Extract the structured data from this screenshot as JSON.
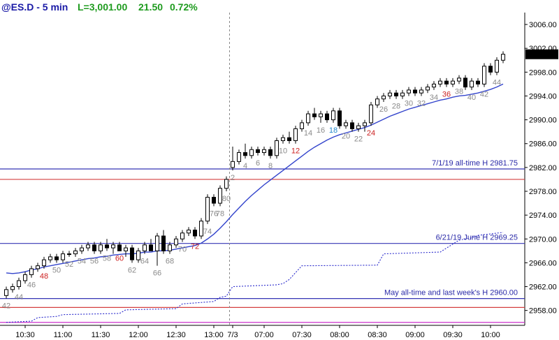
{
  "header": {
    "symbol": "@ES.D - 5 min",
    "last": "L=3,001.00",
    "change": "21.50",
    "pct": "0.72%",
    "colors": {
      "symbol": "#1a1aa6",
      "positive": "#1e9b1e"
    }
  },
  "chart_data": {
    "type": "candlestick",
    "title": "@ES.D - 5 min",
    "xlabel": "",
    "ylabel": "",
    "ylim": [
      2955.5,
      3008
    ],
    "y_ticks": [
      2958,
      2962,
      2966,
      2970,
      2974,
      2978,
      2982,
      2986,
      2990,
      2994,
      2998,
      3002,
      3006
    ],
    "y_tick_labels": [
      "2958.00",
      "2962.00",
      "2966.00",
      "2970.00",
      "2974.00",
      "2978.00",
      "2982.00",
      "2986.00",
      "2990.00",
      "2994.00",
      "2998.00",
      "3002.00",
      "3006.00"
    ],
    "x_ticks": [
      {
        "bar": 3,
        "label": "10:30"
      },
      {
        "bar": 9,
        "label": "11:00"
      },
      {
        "bar": 15,
        "label": "11:30"
      },
      {
        "bar": 21,
        "label": "12:00"
      },
      {
        "bar": 27,
        "label": "12:30"
      },
      {
        "bar": 33,
        "label": "13:00"
      },
      {
        "bar": 36,
        "label": "7/3"
      },
      {
        "bar": 41,
        "label": "07:00"
      },
      {
        "bar": 47,
        "label": "07:30"
      },
      {
        "bar": 53,
        "label": "08:00"
      },
      {
        "bar": 59,
        "label": "08:30"
      },
      {
        "bar": 65,
        "label": "09:00"
      },
      {
        "bar": 71,
        "label": "09:30"
      },
      {
        "bar": 77,
        "label": "10:00"
      }
    ],
    "session_break_bar": 35.5,
    "last_price_label": "3001.00",
    "bars": [
      {
        "o": 2960.5,
        "h": 2962.0,
        "l": 2960.0,
        "c": 2961.5
      },
      {
        "o": 2961.5,
        "h": 2962.5,
        "l": 2961.0,
        "c": 2962.0
      },
      {
        "o": 2962.0,
        "h": 2963.5,
        "l": 2961.5,
        "c": 2963.0
      },
      {
        "o": 2963.0,
        "h": 2964.5,
        "l": 2962.5,
        "c": 2964.0
      },
      {
        "o": 2964.0,
        "h": 2965.5,
        "l": 2963.5,
        "c": 2965.0
      },
      {
        "o": 2965.0,
        "h": 2966.0,
        "l": 2964.5,
        "c": 2965.5
      },
      {
        "o": 2965.5,
        "h": 2967.0,
        "l": 2965.0,
        "c": 2966.5
      },
      {
        "o": 2966.5,
        "h": 2967.5,
        "l": 2966.0,
        "c": 2967.0
      },
      {
        "o": 2967.0,
        "h": 2967.5,
        "l": 2966.0,
        "c": 2966.5
      },
      {
        "o": 2966.5,
        "h": 2968.0,
        "l": 2966.0,
        "c": 2967.5
      },
      {
        "o": 2967.5,
        "h": 2968.0,
        "l": 2967.0,
        "c": 2967.5
      },
      {
        "o": 2967.5,
        "h": 2968.5,
        "l": 2967.0,
        "c": 2968.0
      },
      {
        "o": 2968.0,
        "h": 2969.0,
        "l": 2967.5,
        "c": 2968.5
      },
      {
        "o": 2968.5,
        "h": 2969.5,
        "l": 2968.0,
        "c": 2969.0
      },
      {
        "o": 2969.0,
        "h": 2969.5,
        "l": 2967.5,
        "c": 2968.0
      },
      {
        "o": 2968.0,
        "h": 2969.5,
        "l": 2967.5,
        "c": 2969.0
      },
      {
        "o": 2969.0,
        "h": 2970.0,
        "l": 2968.0,
        "c": 2968.5
      },
      {
        "o": 2968.5,
        "h": 2969.5,
        "l": 2967.5,
        "c": 2969.0
      },
      {
        "o": 2969.0,
        "h": 2969.5,
        "l": 2968.0,
        "c": 2968.0
      },
      {
        "o": 2968.0,
        "h": 2969.0,
        "l": 2967.0,
        "c": 2968.5
      },
      {
        "o": 2968.5,
        "h": 2969.0,
        "l": 2966.0,
        "c": 2966.5
      },
      {
        "o": 2966.5,
        "h": 2968.5,
        "l": 2966.0,
        "c": 2968.0
      },
      {
        "o": 2968.0,
        "h": 2969.5,
        "l": 2967.5,
        "c": 2969.0
      },
      {
        "o": 2969.0,
        "h": 2970.0,
        "l": 2968.0,
        "c": 2968.0
      },
      {
        "o": 2968.0,
        "h": 2971.0,
        "l": 2965.5,
        "c": 2970.5
      },
      {
        "o": 2970.5,
        "h": 2971.5,
        "l": 2967.5,
        "c": 2968.0
      },
      {
        "o": 2968.0,
        "h": 2969.5,
        "l": 2967.5,
        "c": 2969.0
      },
      {
        "o": 2969.0,
        "h": 2970.5,
        "l": 2968.5,
        "c": 2970.0
      },
      {
        "o": 2970.0,
        "h": 2971.5,
        "l": 2969.5,
        "c": 2971.0
      },
      {
        "o": 2971.0,
        "h": 2972.0,
        "l": 2970.5,
        "c": 2971.5
      },
      {
        "o": 2971.5,
        "h": 2972.0,
        "l": 2970.0,
        "c": 2970.5
      },
      {
        "o": 2970.5,
        "h": 2973.5,
        "l": 2970.0,
        "c": 2973.0
      },
      {
        "o": 2973.0,
        "h": 2977.5,
        "l": 2972.5,
        "c": 2977.0
      },
      {
        "o": 2977.0,
        "h": 2977.5,
        "l": 2975.5,
        "c": 2976.0
      },
      {
        "o": 2976.0,
        "h": 2979.0,
        "l": 2975.5,
        "c": 2978.5
      },
      {
        "o": 2978.5,
        "h": 2980.5,
        "l": 2978.0,
        "c": 2980.0
      },
      {
        "o": 2982.0,
        "h": 2985.5,
        "l": 2981.5,
        "c": 2983.0
      },
      {
        "o": 2983.0,
        "h": 2985.0,
        "l": 2982.5,
        "c": 2984.5
      },
      {
        "o": 2984.5,
        "h": 2986.0,
        "l": 2983.5,
        "c": 2984.0
      },
      {
        "o": 2984.0,
        "h": 2985.5,
        "l": 2983.5,
        "c": 2985.0
      },
      {
        "o": 2985.0,
        "h": 2985.5,
        "l": 2984.0,
        "c": 2984.5
      },
      {
        "o": 2984.5,
        "h": 2985.5,
        "l": 2984.0,
        "c": 2985.0
      },
      {
        "o": 2985.0,
        "h": 2985.5,
        "l": 2983.5,
        "c": 2984.0
      },
      {
        "o": 2984.0,
        "h": 2987.0,
        "l": 2983.5,
        "c": 2986.5
      },
      {
        "o": 2986.5,
        "h": 2987.5,
        "l": 2986.0,
        "c": 2987.0
      },
      {
        "o": 2987.0,
        "h": 2988.0,
        "l": 2986.0,
        "c": 2986.5
      },
      {
        "o": 2986.5,
        "h": 2989.0,
        "l": 2986.0,
        "c": 2988.5
      },
      {
        "o": 2988.5,
        "h": 2990.0,
        "l": 2988.0,
        "c": 2989.5
      },
      {
        "o": 2989.5,
        "h": 2991.5,
        "l": 2989.0,
        "c": 2991.0
      },
      {
        "o": 2991.0,
        "h": 2992.0,
        "l": 2990.0,
        "c": 2990.5
      },
      {
        "o": 2990.5,
        "h": 2991.5,
        "l": 2989.5,
        "c": 2991.0
      },
      {
        "o": 2991.0,
        "h": 2991.5,
        "l": 2989.5,
        "c": 2990.0
      },
      {
        "o": 2990.0,
        "h": 2992.0,
        "l": 2989.5,
        "c": 2991.5
      },
      {
        "o": 2991.5,
        "h": 2992.0,
        "l": 2988.5,
        "c": 2989.0
      },
      {
        "o": 2989.0,
        "h": 2990.0,
        "l": 2988.5,
        "c": 2989.5
      },
      {
        "o": 2989.5,
        "h": 2990.0,
        "l": 2988.0,
        "c": 2988.5
      },
      {
        "o": 2988.5,
        "h": 2989.5,
        "l": 2988.0,
        "c": 2989.0
      },
      {
        "o": 2989.0,
        "h": 2990.0,
        "l": 2988.0,
        "c": 2989.5
      },
      {
        "o": 2989.5,
        "h": 2993.0,
        "l": 2989.0,
        "c": 2992.5
      },
      {
        "o": 2992.5,
        "h": 2994.0,
        "l": 2992.0,
        "c": 2993.5
      },
      {
        "o": 2993.5,
        "h": 2994.5,
        "l": 2993.0,
        "c": 2994.0
      },
      {
        "o": 2994.0,
        "h": 2995.0,
        "l": 2993.5,
        "c": 2994.5
      },
      {
        "o": 2994.5,
        "h": 2995.0,
        "l": 2993.5,
        "c": 2994.0
      },
      {
        "o": 2994.0,
        "h": 2995.0,
        "l": 2993.5,
        "c": 2994.5
      },
      {
        "o": 2994.5,
        "h": 2995.5,
        "l": 2994.0,
        "c": 2995.0
      },
      {
        "o": 2995.0,
        "h": 2995.5,
        "l": 2994.0,
        "c": 2994.5
      },
      {
        "o": 2994.5,
        "h": 2995.5,
        "l": 2994.0,
        "c": 2995.0
      },
      {
        "o": 2995.0,
        "h": 2996.0,
        "l": 2994.5,
        "c": 2995.5
      },
      {
        "o": 2995.5,
        "h": 2996.5,
        "l": 2995.0,
        "c": 2996.0
      },
      {
        "o": 2996.0,
        "h": 2997.0,
        "l": 2995.5,
        "c": 2996.5
      },
      {
        "o": 2996.5,
        "h": 2997.0,
        "l": 2995.5,
        "c": 2996.0
      },
      {
        "o": 2996.0,
        "h": 2997.0,
        "l": 2995.5,
        "c": 2996.5
      },
      {
        "o": 2996.5,
        "h": 2997.5,
        "l": 2996.0,
        "c": 2997.0
      },
      {
        "o": 2997.0,
        "h": 2997.5,
        "l": 2995.0,
        "c": 2995.5
      },
      {
        "o": 2995.5,
        "h": 2997.0,
        "l": 2995.0,
        "c": 2996.5
      },
      {
        "o": 2996.5,
        "h": 2997.0,
        "l": 2995.5,
        "c": 2996.0
      },
      {
        "o": 2996.0,
        "h": 2999.5,
        "l": 2995.5,
        "c": 2999.0
      },
      {
        "o": 2999.0,
        "h": 2999.5,
        "l": 2997.5,
        "c": 2998.0
      },
      {
        "o": 2998.0,
        "h": 3000.5,
        "l": 2997.5,
        "c": 3000.0
      },
      {
        "o": 3000.0,
        "h": 3001.5,
        "l": 2999.5,
        "c": 3001.0
      }
    ],
    "ema": {
      "from_bar": 0,
      "values": [
        2964.3,
        2964.2,
        2964.3,
        2964.5,
        2964.8,
        2965.0,
        2965.3,
        2965.5,
        2965.7,
        2965.9,
        2966.1,
        2966.3,
        2966.5,
        2966.7,
        2966.8,
        2967.0,
        2967.1,
        2967.3,
        2967.4,
        2967.5,
        2967.5,
        2967.6,
        2967.8,
        2967.8,
        2968.0,
        2968.0,
        2968.1,
        2968.3,
        2968.5,
        2968.7,
        2968.9,
        2969.3,
        2970.0,
        2970.8,
        2971.8,
        2972.9,
        2974.1,
        2975.2,
        2976.3,
        2977.3,
        2978.2,
        2979.1,
        2979.9,
        2980.7,
        2981.5,
        2982.3,
        2983.1,
        2983.9,
        2984.7,
        2985.4,
        2986.0,
        2986.6,
        2987.1,
        2987.5,
        2987.8,
        2988.1,
        2988.4,
        2988.7,
        2989.1,
        2989.6,
        2990.1,
        2990.6,
        2991.0,
        2991.4,
        2991.8,
        2992.1,
        2992.4,
        2992.7,
        2993.0,
        2993.3,
        2993.5,
        2993.8,
        2994.0,
        2994.1,
        2994.3,
        2994.5,
        2994.8,
        2995.1,
        2995.5,
        2996.0
      ]
    },
    "dotted_series": {
      "name": "",
      "points": [
        [
          0,
          2956.0
        ],
        [
          4,
          2956.2
        ],
        [
          5,
          2956.8
        ],
        [
          8,
          2957.0
        ],
        [
          9,
          2957.3
        ],
        [
          18,
          2957.5
        ],
        [
          19,
          2958.1
        ],
        [
          27,
          2958.3
        ],
        [
          28,
          2959.1
        ],
        [
          33,
          2959.5
        ],
        [
          34,
          2960.2
        ],
        [
          35,
          2960.4
        ],
        [
          36,
          2962.0
        ],
        [
          43,
          2962.3
        ],
        [
          44,
          2962.5
        ],
        [
          45,
          2963.2
        ],
        [
          47,
          2965.5
        ],
        [
          59,
          2965.6
        ],
        [
          60,
          2967.5
        ],
        [
          69,
          2967.8
        ],
        [
          72,
          2969.8
        ],
        [
          74,
          2970.2
        ],
        [
          75,
          2970.6
        ],
        [
          79,
          2971.1
        ]
      ]
    },
    "hlines": [
      {
        "value": 2981.75,
        "label": "7/1/19 all-time H 2981.75",
        "color": "#3535b5"
      },
      {
        "value": 2980.0,
        "label": "",
        "color": "#d44040"
      },
      {
        "value": 2969.25,
        "label": "6/21/19 June H 2969.25",
        "color": "#3535b5"
      },
      {
        "value": 2960.0,
        "label": "May all-time and last week's H 2960.00",
        "color": "#3535b5"
      },
      {
        "value": 2958.5,
        "label": "",
        "color": "#d44040"
      },
      {
        "value": 2956.0,
        "label": "",
        "color": "#cc33cc"
      }
    ],
    "bar_count_labels": [
      {
        "bar": 0,
        "text": "42",
        "color": "gray"
      },
      {
        "bar": 2,
        "text": "44",
        "color": "gray"
      },
      {
        "bar": 4,
        "text": "46",
        "color": "gray"
      },
      {
        "bar": 6,
        "text": "48",
        "color": "red"
      },
      {
        "bar": 8,
        "text": "50",
        "color": "gray"
      },
      {
        "bar": 10,
        "text": "52",
        "color": "gray"
      },
      {
        "bar": 12,
        "text": "54",
        "color": "gray"
      },
      {
        "bar": 14,
        "text": "56",
        "color": "gray"
      },
      {
        "bar": 16,
        "text": "58",
        "color": "gray"
      },
      {
        "bar": 18,
        "text": "60",
        "color": "red"
      },
      {
        "bar": 20,
        "text": "62",
        "color": "gray"
      },
      {
        "bar": 22,
        "text": "64",
        "color": "gray"
      },
      {
        "bar": 24,
        "text": "66",
        "color": "gray"
      },
      {
        "bar": 26,
        "text": "68",
        "color": "gray"
      },
      {
        "bar": 28,
        "text": "70",
        "color": "gray"
      },
      {
        "bar": 30,
        "text": "72",
        "color": "red"
      },
      {
        "bar": 32,
        "text": "74",
        "color": "gray"
      },
      {
        "bar": 33,
        "text": "76",
        "color": "gray"
      },
      {
        "bar": 34,
        "text": "78",
        "color": "gray"
      },
      {
        "bar": 35,
        "text": "80",
        "color": "gray"
      },
      {
        "bar": 36,
        "text": "2",
        "color": "gray"
      },
      {
        "bar": 38,
        "text": "4",
        "color": "gray"
      },
      {
        "bar": 40,
        "text": "6",
        "color": "gray"
      },
      {
        "bar": 42,
        "text": "8",
        "color": "gray"
      },
      {
        "bar": 44,
        "text": "10",
        "color": "gray"
      },
      {
        "bar": 46,
        "text": "12",
        "color": "red"
      },
      {
        "bar": 48,
        "text": "14",
        "color": "gray"
      },
      {
        "bar": 50,
        "text": "16",
        "color": "gray"
      },
      {
        "bar": 52,
        "text": "18",
        "color": "blue"
      },
      {
        "bar": 54,
        "text": "20",
        "color": "gray"
      },
      {
        "bar": 56,
        "text": "22",
        "color": "gray"
      },
      {
        "bar": 58,
        "text": "24",
        "color": "red"
      },
      {
        "bar": 60,
        "text": "26",
        "color": "gray"
      },
      {
        "bar": 62,
        "text": "28",
        "color": "gray"
      },
      {
        "bar": 64,
        "text": "30",
        "color": "gray"
      },
      {
        "bar": 66,
        "text": "32",
        "color": "gray"
      },
      {
        "bar": 68,
        "text": "34",
        "color": "gray"
      },
      {
        "bar": 70,
        "text": "36",
        "color": "red"
      },
      {
        "bar": 72,
        "text": "38",
        "color": "gray"
      },
      {
        "bar": 74,
        "text": "40",
        "color": "gray"
      },
      {
        "bar": 76,
        "text": "42",
        "color": "gray"
      },
      {
        "bar": 78,
        "text": "44",
        "color": "gray"
      }
    ],
    "colors": {
      "ema": "#3344cc",
      "dotted": "#2a2acc",
      "label_gray": "#8a8a8a",
      "label_red": "#cc2222",
      "label_blue": "#2288cc",
      "last_price_bg": "#000000",
      "session_break": "#888888"
    }
  }
}
